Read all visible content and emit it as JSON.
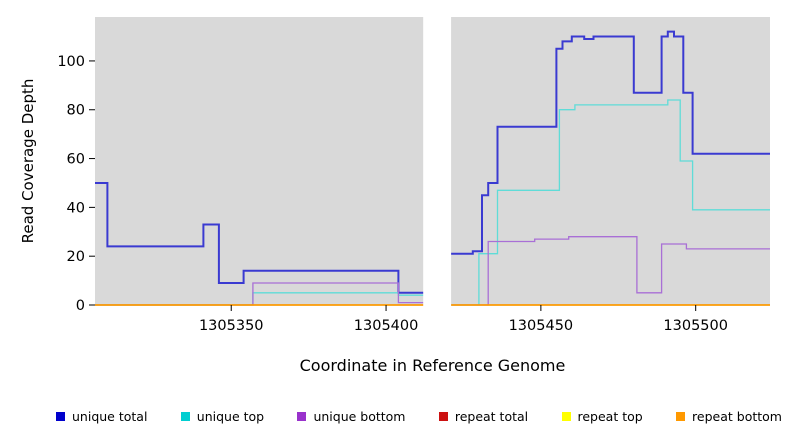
{
  "chart_data": {
    "type": "line",
    "subtype": "step",
    "title": "",
    "xlabel": "Coordinate in Reference Genome",
    "ylabel": "Read Coverage Depth",
    "xlim": [
      1305306,
      1305524
    ],
    "ylim": [
      0,
      118
    ],
    "grid": false,
    "legend_position": "bottom",
    "plot_bg": "#d9d9d9",
    "x_ticks": [
      {
        "value": 1305350,
        "label": "1305350"
      },
      {
        "value": 1305400,
        "label": "1305400"
      },
      {
        "value": 1305450,
        "label": "1305450"
      },
      {
        "value": 1305500,
        "label": "1305500"
      }
    ],
    "y_ticks": [
      {
        "value": 0,
        "label": "0"
      },
      {
        "value": 20,
        "label": "20"
      },
      {
        "value": 40,
        "label": "40"
      },
      {
        "value": 60,
        "label": "60"
      },
      {
        "value": 80,
        "label": "80"
      },
      {
        "value": 100,
        "label": "100"
      }
    ],
    "gap_band": {
      "x_start": 1305412,
      "x_end": 1305421,
      "color": "#ffffff"
    },
    "series": [
      {
        "name": "unique total",
        "color": "#3a3ad1",
        "width": 2,
        "points": [
          [
            1305306,
            50
          ],
          [
            1305310,
            24
          ],
          [
            1305341,
            33
          ],
          [
            1305346,
            9
          ],
          [
            1305354,
            14
          ],
          [
            1305404,
            5
          ],
          [
            1305418,
            21
          ],
          [
            1305428,
            22
          ],
          [
            1305431,
            45
          ],
          [
            1305433,
            50
          ],
          [
            1305436,
            73
          ],
          [
            1305455,
            105
          ],
          [
            1305457,
            108
          ],
          [
            1305460,
            110
          ],
          [
            1305464,
            109
          ],
          [
            1305467,
            110
          ],
          [
            1305480,
            87
          ],
          [
            1305489,
            110
          ],
          [
            1305491,
            112
          ],
          [
            1305493,
            110
          ],
          [
            1305496,
            87
          ],
          [
            1305499,
            62
          ],
          [
            1305524,
            62
          ]
        ]
      },
      {
        "name": "unique top",
        "color": "#5fdcd8",
        "width": 1.3,
        "points": [
          [
            1305306,
            0
          ],
          [
            1305357,
            5
          ],
          [
            1305404,
            4
          ],
          [
            1305419,
            0
          ],
          [
            1305430,
            21
          ],
          [
            1305436,
            47
          ],
          [
            1305456,
            80
          ],
          [
            1305461,
            82
          ],
          [
            1305491,
            84
          ],
          [
            1305495,
            59
          ],
          [
            1305499,
            39
          ],
          [
            1305524,
            39
          ]
        ]
      },
      {
        "name": "unique bottom",
        "color": "#a96fd6",
        "width": 1.3,
        "points": [
          [
            1305306,
            0
          ],
          [
            1305357,
            9
          ],
          [
            1305404,
            1
          ],
          [
            1305419,
            0
          ],
          [
            1305433,
            26
          ],
          [
            1305448,
            27
          ],
          [
            1305459,
            28
          ],
          [
            1305481,
            5
          ],
          [
            1305489,
            25
          ],
          [
            1305497,
            23
          ],
          [
            1305524,
            23
          ]
        ]
      },
      {
        "name": "repeat total",
        "color": "#cc1111",
        "width": 1.2,
        "points": [
          [
            1305306,
            0
          ],
          [
            1305524,
            0
          ]
        ]
      },
      {
        "name": "repeat top",
        "color": "#ffff00",
        "width": 1.2,
        "points": [
          [
            1305306,
            0
          ],
          [
            1305524,
            0
          ]
        ]
      },
      {
        "name": "repeat bottom",
        "color": "#ff9900",
        "width": 1.6,
        "points": [
          [
            1305306,
            0
          ],
          [
            1305524,
            0
          ]
        ]
      }
    ]
  },
  "legend": {
    "items": [
      {
        "label": "unique total",
        "color": "#0000cc"
      },
      {
        "label": "unique top",
        "color": "#00ced1"
      },
      {
        "label": "unique bottom",
        "color": "#9932cc"
      },
      {
        "label": "repeat total",
        "color": "#cc1111"
      },
      {
        "label": "repeat top",
        "color": "#ffff00"
      },
      {
        "label": "repeat bottom",
        "color": "#ff9900"
      }
    ]
  }
}
